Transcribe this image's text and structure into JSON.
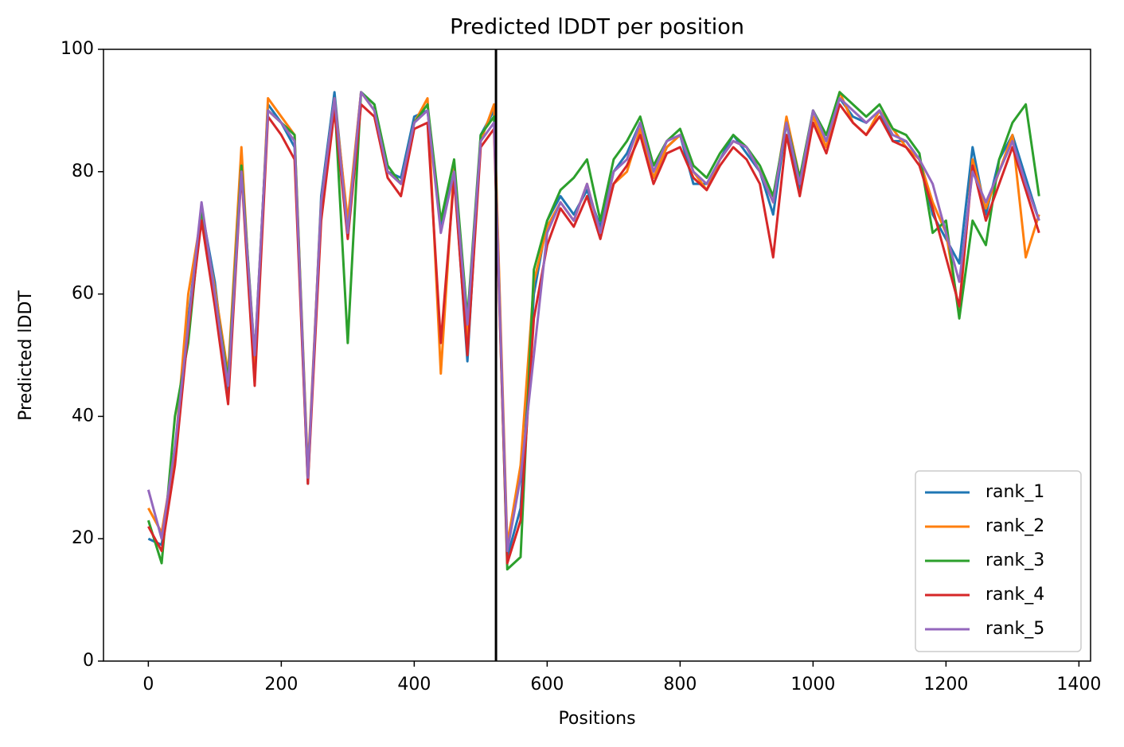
{
  "chart_data": {
    "type": "line",
    "title": "Predicted lDDT per position",
    "x_label": "Positions",
    "y_label": "Predicted lDDT",
    "x": [
      0,
      20,
      40,
      60,
      80,
      100,
      120,
      140,
      160,
      180,
      200,
      220,
      240,
      260,
      280,
      300,
      320,
      340,
      360,
      380,
      400,
      420,
      440,
      460,
      480,
      500,
      520,
      540,
      560,
      580,
      600,
      620,
      640,
      660,
      680,
      700,
      720,
      740,
      760,
      780,
      800,
      820,
      840,
      860,
      880,
      900,
      920,
      940,
      960,
      980,
      1000,
      1020,
      1040,
      1060,
      1080,
      1100,
      1120,
      1140,
      1160,
      1180,
      1200,
      1220,
      1240,
      1260,
      1280,
      1300,
      1320,
      1340
    ],
    "series": [
      {
        "name": "rank_1",
        "color": "#1f77b4",
        "values": [
          20,
          19,
          33,
          56,
          74,
          62,
          44,
          82,
          48,
          91,
          88,
          84,
          29,
          76,
          93,
          71,
          93,
          91,
          80,
          79,
          89,
          90,
          71,
          80,
          49,
          86,
          90,
          17,
          25,
          60,
          72,
          76,
          73,
          77,
          71,
          80,
          83,
          88,
          79,
          84,
          86,
          78,
          78,
          82,
          86,
          83,
          80,
          73,
          88,
          77,
          90,
          85,
          92,
          89,
          88,
          90,
          85,
          85,
          82,
          73,
          69,
          65,
          84,
          73,
          82,
          86,
          79,
          72
        ]
      },
      {
        "name": "rank_2",
        "color": "#ff7f0e",
        "values": [
          25,
          21,
          34,
          60,
          73,
          61,
          47,
          84,
          46,
          92,
          89,
          86,
          31,
          75,
          92,
          72,
          93,
          90,
          80,
          78,
          88,
          92,
          47,
          81,
          52,
          85,
          91,
          19,
          32,
          62,
          71,
          75,
          72,
          78,
          70,
          78,
          80,
          87,
          79,
          84,
          86,
          80,
          77,
          82,
          85,
          84,
          80,
          75,
          89,
          79,
          89,
          84,
          93,
          88,
          86,
          90,
          87,
          84,
          82,
          75,
          70,
          57,
          82,
          74,
          80,
          86,
          66,
          73
        ]
      },
      {
        "name": "rank_3",
        "color": "#2ca02c",
        "values": [
          23,
          16,
          40,
          52,
          74,
          60,
          46,
          81,
          50,
          90,
          88,
          86,
          30,
          74,
          92,
          52,
          93,
          91,
          81,
          78,
          88,
          91,
          72,
          82,
          56,
          86,
          89,
          15,
          17,
          64,
          72,
          77,
          79,
          82,
          72,
          82,
          85,
          89,
          81,
          85,
          87,
          81,
          79,
          83,
          86,
          84,
          81,
          76,
          88,
          79,
          90,
          86,
          93,
          91,
          89,
          91,
          87,
          86,
          83,
          70,
          72,
          56,
          72,
          68,
          82,
          88,
          91,
          76
        ]
      },
      {
        "name": "rank_4",
        "color": "#d62728",
        "values": [
          22,
          18,
          32,
          54,
          72,
          58,
          42,
          80,
          45,
          89,
          86,
          82,
          29,
          72,
          90,
          69,
          91,
          89,
          79,
          76,
          87,
          88,
          52,
          79,
          50,
          84,
          87,
          16,
          23,
          56,
          68,
          74,
          71,
          76,
          69,
          78,
          81,
          86,
          78,
          83,
          84,
          79,
          77,
          81,
          84,
          82,
          78,
          66,
          86,
          76,
          88,
          83,
          91,
          88,
          86,
          89,
          85,
          84,
          81,
          74,
          66,
          58,
          81,
          72,
          78,
          84,
          77,
          70
        ]
      },
      {
        "name": "rank_5",
        "color": "#9467bd",
        "values": [
          28,
          20,
          35,
          55,
          75,
          60,
          45,
          80,
          50,
          90,
          88,
          85,
          30,
          75,
          92,
          70,
          93,
          90,
          80,
          78,
          88,
          90,
          70,
          80,
          55,
          85,
          88,
          18,
          30,
          50,
          70,
          75,
          72,
          78,
          70,
          80,
          82,
          88,
          80,
          85,
          86,
          80,
          78,
          82,
          85,
          84,
          80,
          75,
          88,
          78,
          90,
          85,
          92,
          90,
          88,
          90,
          86,
          85,
          82,
          78,
          70,
          62,
          80,
          75,
          80,
          85,
          78,
          72
        ]
      }
    ],
    "vline": 523,
    "xlim": [
      -67.5,
      1417.5
    ],
    "ylim": [
      0,
      100
    ],
    "xticks": [
      0,
      200,
      400,
      600,
      800,
      1000,
      1200,
      1400
    ],
    "yticks": [
      0,
      20,
      40,
      60,
      80,
      100
    ],
    "legend": "lower right"
  }
}
